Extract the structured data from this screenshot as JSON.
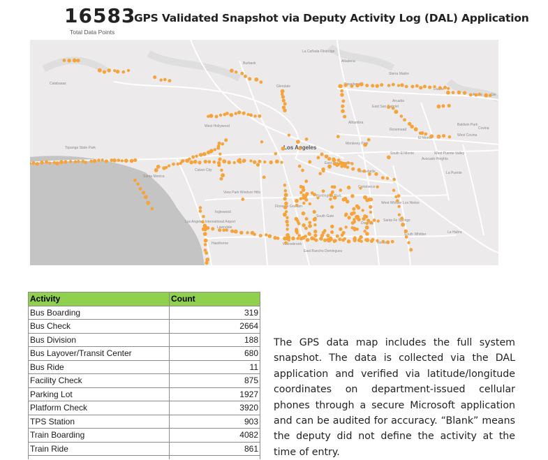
{
  "header": {
    "total_value": "16583",
    "total_label": "Total Data Points",
    "title": "GPS Validated Snapshot via Deputy Activity Log (DAL) Application"
  },
  "map": {
    "colors": {
      "land": "#eceaea",
      "water": "#c4c4c4",
      "roads": "#ffffff",
      "points": "#f5a33a"
    },
    "places": {
      "burbank": "Burbank",
      "glendale": "Glendale",
      "pasadena": "Pasadena",
      "la_canada": "La Cañada Flintridge",
      "altadena": "Altadena",
      "sierra_madre": "Sierra Madre",
      "arcadia": "Arcadia",
      "duarte": "Duarte",
      "calabasas": "Calabasas",
      "east_san_gabriel": "East San Gabriel",
      "alhambra": "Alhambra",
      "rosemead": "Rosemead",
      "el_monte": "El Monte",
      "baldwin_park": "Baldwin Park",
      "west_covina": "West Covina",
      "covina": "Covina",
      "azusa": "Azusa",
      "glendora": "Gle",
      "west_hollywood": "West Hollywood",
      "los_angeles": "Los Angeles",
      "monterey_park": "Monterey Park",
      "south_el_monte": "South El Monte",
      "avocado_heights": "Avocado Heights",
      "west_puente_valley": "West Puente Valley",
      "topanga": "Topanga State Park",
      "santa_monica": "Santa Monica",
      "culver_city": "Culver City",
      "east_la": "East Los Angeles",
      "montebello": "Montebello",
      "la_puente": "La Puente",
      "view_park": "View Park Windsor Hills",
      "inglewood": "Inglewood",
      "huntington_park": "Huntington Park",
      "florence": "Florence Graham",
      "commerce": "Commerce",
      "west_whittier": "West Whittier Los Nietos",
      "south_gate": "South Gate",
      "downey": "Downey",
      "santa_fe_springs": "Santa Fe Springs",
      "lax": "Los Angeles International Airport",
      "lawndale": "Lawndale",
      "hawthorne": "Hawthorne",
      "willowbrook": "Willowbrook",
      "rancho_dominguez": "East Rancho Dominguez",
      "norwalk": "Norwalk",
      "south_whittier": "South Whittier",
      "la_habra": "La Habra"
    }
  },
  "table": {
    "headers": [
      "Activity",
      "Count"
    ],
    "rows": [
      [
        "Bus Boarding",
        "319"
      ],
      [
        "Bus Check",
        "2664"
      ],
      [
        "Bus Division",
        "188"
      ],
      [
        "Bus Layover/Transit Center",
        "680"
      ],
      [
        "Bus Ride",
        "11"
      ],
      [
        "Facility Check",
        "875"
      ],
      [
        "Parking Lot",
        "1927"
      ],
      [
        "Platform Check",
        "3920"
      ],
      [
        "TPS Station",
        "903"
      ],
      [
        "Train Boarding",
        "4082"
      ],
      [
        "Train Ride",
        "861"
      ]
    ]
  },
  "description": "The GPS data map includes the full system snapshot. The data is collected via the DAL application and verified via latitude/longitude coordinates on department-issued cellular phones through a secure Microsoft application and can be audited for accuracy. “Blank” means the deputy did not define the activity at the time of entry."
}
